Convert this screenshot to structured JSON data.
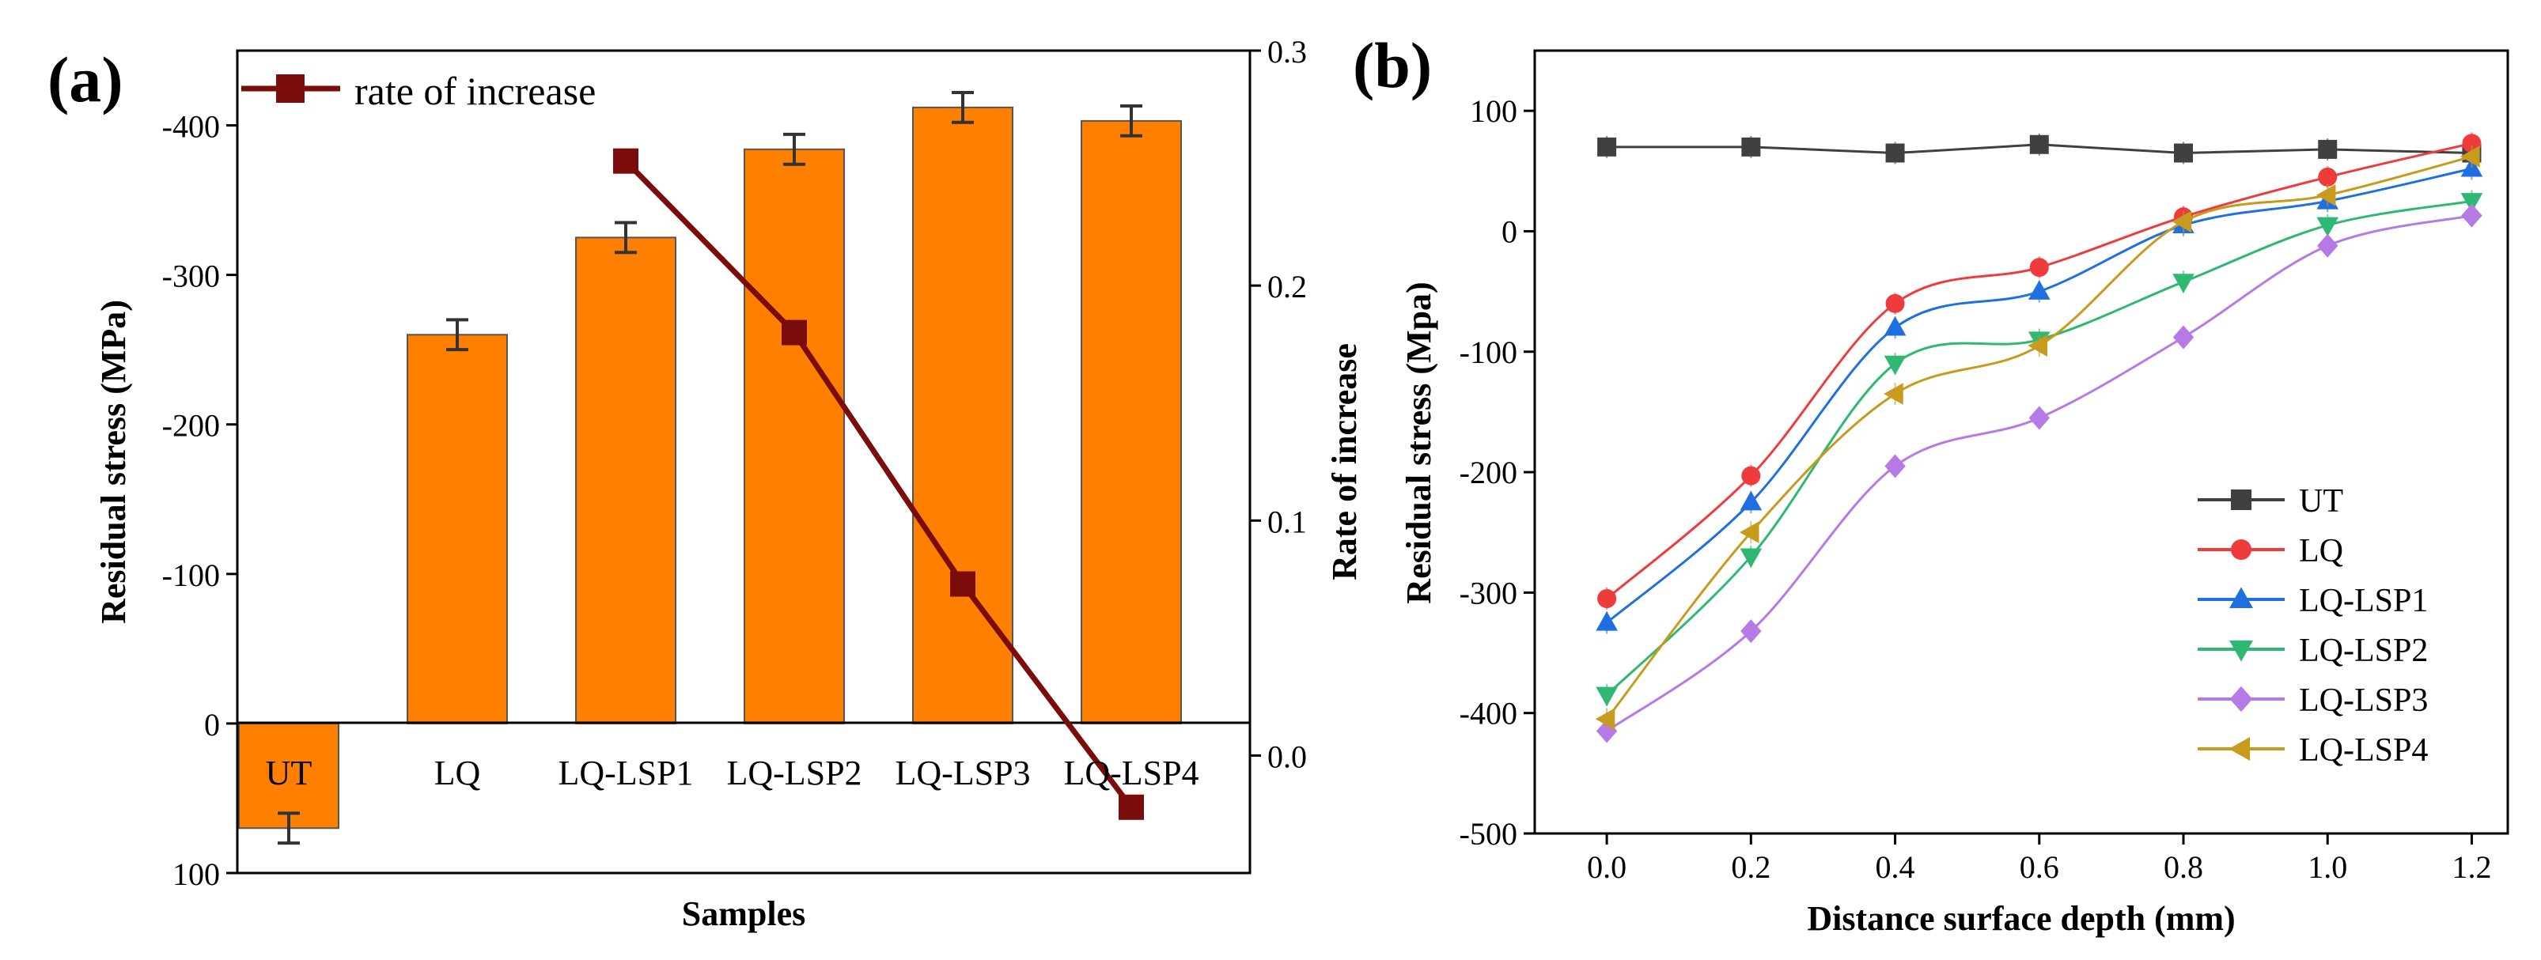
{
  "panel_a": {
    "label": "(a)",
    "legend_label": "rate of increase",
    "xlabel": "Samples",
    "ylabel_left": "Residual stress (MPa)",
    "ylabel_right": "Rate of increase",
    "left_ticks": [
      "-400",
      "-300",
      "-200",
      "-100",
      "0",
      "100"
    ],
    "right_ticks": [
      "0.3",
      "0.2",
      "0.1",
      "0.0"
    ]
  },
  "panel_b": {
    "label": "(b)",
    "xlabel": "Distance surface depth (mm)",
    "ylabel": "Residual stress (Mpa)",
    "x_ticks": [
      "0.0",
      "0.2",
      "0.4",
      "0.6",
      "0.8",
      "1.0",
      "1.2"
    ],
    "y_ticks": [
      "100",
      "0",
      "-100",
      "-200",
      "-300",
      "-400",
      "-500"
    ]
  },
  "colors": {
    "bar": "#ff8000",
    "rate_line": "#7b0c0c",
    "UT": "#404040",
    "LQ": "#ee3b3b",
    "LQ-LSP1": "#1f6fe0",
    "LQ-LSP2": "#2eb872",
    "LQ-LSP3": "#b57ae6",
    "LQ-LSP4": "#c89a1e"
  },
  "chart_data": [
    {
      "type": "bar",
      "title": "(a)",
      "xlabel": "Samples",
      "ylabel": "Residual stress (MPa)",
      "y_axis_inverted": true,
      "ylim": [
        100,
        -450
      ],
      "categories": [
        "UT",
        "LQ",
        "LQ-LSP1",
        "LQ-LSP2",
        "LQ-LSP3",
        "LQ-LSP4"
      ],
      "values": [
        70,
        -260,
        -325,
        -384,
        -412,
        -403
      ],
      "errors": [
        10,
        10,
        10,
        10,
        10,
        10
      ],
      "secondary_axis": {
        "label": "Rate of increase",
        "ylim": [
          -0.05,
          0.3
        ],
        "series": [
          {
            "name": "rate of increase",
            "type": "line",
            "categories": [
              "LQ-LSP1",
              "LQ-LSP2",
              "LQ-LSP3",
              "LQ-LSP4"
            ],
            "values": [
              0.253,
              0.18,
              0.073,
              -0.022
            ]
          }
        ]
      }
    },
    {
      "type": "line",
      "title": "(b)",
      "xlabel": "Distance surface depth (mm)",
      "ylabel": "Residual stress (Mpa)",
      "xlim": [
        -0.1,
        1.25
      ],
      "ylim": [
        -500,
        150
      ],
      "x": [
        0.0,
        0.2,
        0.4,
        0.6,
        0.8,
        1.0,
        1.2
      ],
      "legend_position": "bottom-right",
      "series": [
        {
          "name": "UT",
          "marker": "square",
          "values": [
            70,
            70,
            65,
            72,
            65,
            68,
            65
          ]
        },
        {
          "name": "LQ",
          "marker": "circle",
          "values": [
            -305,
            -203,
            -60,
            -30,
            12,
            45,
            73
          ]
        },
        {
          "name": "LQ-LSP1",
          "marker": "triangle-up",
          "values": [
            -325,
            -225,
            -80,
            -50,
            5,
            25,
            52
          ]
        },
        {
          "name": "LQ-LSP2",
          "marker": "triangle-down",
          "values": [
            -385,
            -270,
            -110,
            -90,
            -42,
            5,
            25
          ]
        },
        {
          "name": "LQ-LSP3",
          "marker": "diamond",
          "values": [
            -415,
            -332,
            -195,
            -155,
            -88,
            -12,
            13
          ]
        },
        {
          "name": "LQ-LSP4",
          "marker": "triangle-left",
          "values": [
            -405,
            -250,
            -135,
            -95,
            8,
            30,
            62
          ]
        }
      ]
    }
  ]
}
